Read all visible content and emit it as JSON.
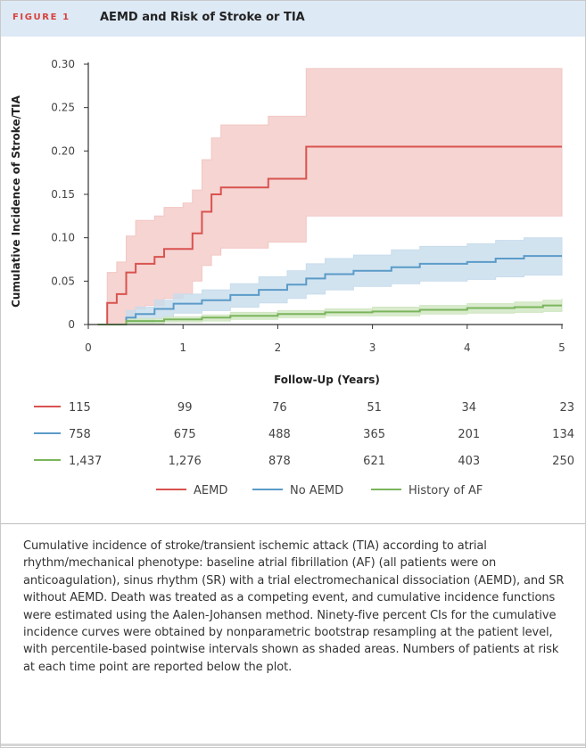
{
  "figure": {
    "label": "FIGURE 1",
    "title": "AEMD and Risk of Stroke or TIA"
  },
  "chart_data": {
    "type": "line",
    "step": true,
    "title": "AEMD and Risk of Stroke or TIA",
    "xlabel": "Follow-Up (Years)",
    "ylabel": "Cumulative Incidence of Stroke/TIA",
    "xlim": [
      0,
      5
    ],
    "ylim": [
      0,
      0.3
    ],
    "xticks": [
      0,
      1,
      2,
      3,
      4,
      5
    ],
    "xtick_labels": [
      "0",
      "1",
      "2",
      "3",
      "4",
      "5"
    ],
    "yticks": [
      0,
      0.05,
      0.1,
      0.15,
      0.2,
      0.25,
      0.3
    ],
    "ytick_labels": [
      "0",
      "0.05",
      "0.10",
      "0.15",
      "0.20",
      "0.25",
      "0.30"
    ],
    "series": [
      {
        "name": "AEMD",
        "color": "#d9534f",
        "band_color": "#f2c6c3",
        "points": [
          [
            0.1,
            0
          ],
          [
            0.2,
            0.025
          ],
          [
            0.3,
            0.035
          ],
          [
            0.4,
            0.06
          ],
          [
            0.5,
            0.07
          ],
          [
            0.6,
            0.07
          ],
          [
            0.7,
            0.078
          ],
          [
            0.8,
            0.087
          ],
          [
            1.0,
            0.087
          ],
          [
            1.1,
            0.105
          ],
          [
            1.2,
            0.13
          ],
          [
            1.3,
            0.15
          ],
          [
            1.4,
            0.158
          ],
          [
            1.9,
            0.168
          ],
          [
            2.3,
            0.205
          ],
          [
            5.0,
            0.205
          ]
        ],
        "lower": [
          [
            0.1,
            0
          ],
          [
            0.3,
            0
          ],
          [
            0.4,
            0.01
          ],
          [
            0.5,
            0.018
          ],
          [
            0.6,
            0.022
          ],
          [
            0.8,
            0.03
          ],
          [
            1.0,
            0.035
          ],
          [
            1.1,
            0.05
          ],
          [
            1.2,
            0.068
          ],
          [
            1.3,
            0.08
          ],
          [
            1.4,
            0.088
          ],
          [
            1.9,
            0.095
          ],
          [
            2.3,
            0.125
          ],
          [
            5.0,
            0.125
          ]
        ],
        "upper": [
          [
            0.1,
            0
          ],
          [
            0.2,
            0.06
          ],
          [
            0.3,
            0.072
          ],
          [
            0.4,
            0.102
          ],
          [
            0.5,
            0.12
          ],
          [
            0.6,
            0.12
          ],
          [
            0.7,
            0.125
          ],
          [
            0.8,
            0.135
          ],
          [
            1.0,
            0.14
          ],
          [
            1.1,
            0.155
          ],
          [
            1.2,
            0.19
          ],
          [
            1.3,
            0.215
          ],
          [
            1.4,
            0.23
          ],
          [
            1.9,
            0.24
          ],
          [
            2.3,
            0.295
          ],
          [
            5.0,
            0.295
          ]
        ]
      },
      {
        "name": "No AEMD",
        "color": "#5b9bc8",
        "band_color": "#c7dcec",
        "points": [
          [
            0.1,
            0
          ],
          [
            0.4,
            0.008
          ],
          [
            0.5,
            0.012
          ],
          [
            0.7,
            0.018
          ],
          [
            0.9,
            0.024
          ],
          [
            1.2,
            0.028
          ],
          [
            1.5,
            0.034
          ],
          [
            1.8,
            0.04
          ],
          [
            2.1,
            0.046
          ],
          [
            2.3,
            0.053
          ],
          [
            2.5,
            0.058
          ],
          [
            2.8,
            0.062
          ],
          [
            3.2,
            0.066
          ],
          [
            3.5,
            0.07
          ],
          [
            4.0,
            0.072
          ],
          [
            4.3,
            0.076
          ],
          [
            4.6,
            0.079
          ],
          [
            5.0,
            0.079
          ]
        ],
        "lower": [
          [
            0.1,
            0
          ],
          [
            0.4,
            0.002
          ],
          [
            0.7,
            0.008
          ],
          [
            0.9,
            0.013
          ],
          [
            1.2,
            0.016
          ],
          [
            1.5,
            0.02
          ],
          [
            1.8,
            0.025
          ],
          [
            2.1,
            0.03
          ],
          [
            2.3,
            0.035
          ],
          [
            2.5,
            0.04
          ],
          [
            2.8,
            0.044
          ],
          [
            3.2,
            0.047
          ],
          [
            3.5,
            0.05
          ],
          [
            4.0,
            0.052
          ],
          [
            4.3,
            0.055
          ],
          [
            4.6,
            0.057
          ],
          [
            5.0,
            0.058
          ]
        ],
        "upper": [
          [
            0.1,
            0
          ],
          [
            0.4,
            0.016
          ],
          [
            0.5,
            0.02
          ],
          [
            0.7,
            0.028
          ],
          [
            0.9,
            0.035
          ],
          [
            1.2,
            0.04
          ],
          [
            1.5,
            0.047
          ],
          [
            1.8,
            0.055
          ],
          [
            2.1,
            0.062
          ],
          [
            2.3,
            0.07
          ],
          [
            2.5,
            0.076
          ],
          [
            2.8,
            0.08
          ],
          [
            3.2,
            0.086
          ],
          [
            3.5,
            0.09
          ],
          [
            4.0,
            0.093
          ],
          [
            4.3,
            0.097
          ],
          [
            4.6,
            0.1
          ],
          [
            5.0,
            0.1
          ]
        ]
      },
      {
        "name": "History of AF",
        "color": "#7ab55c",
        "band_color": "#cfe6c1",
        "points": [
          [
            0.1,
            0
          ],
          [
            0.4,
            0.004
          ],
          [
            0.8,
            0.006
          ],
          [
            1.2,
            0.008
          ],
          [
            1.5,
            0.01
          ],
          [
            2.0,
            0.012
          ],
          [
            2.5,
            0.014
          ],
          [
            3.0,
            0.015
          ],
          [
            3.5,
            0.017
          ],
          [
            4.0,
            0.019
          ],
          [
            4.5,
            0.02
          ],
          [
            4.8,
            0.022
          ],
          [
            5.0,
            0.022
          ]
        ],
        "lower": [
          [
            0.1,
            0
          ],
          [
            0.4,
            0.001
          ],
          [
            0.8,
            0.003
          ],
          [
            1.2,
            0.004
          ],
          [
            1.5,
            0.006
          ],
          [
            2.0,
            0.008
          ],
          [
            2.5,
            0.01
          ],
          [
            3.0,
            0.01
          ],
          [
            3.5,
            0.012
          ],
          [
            4.0,
            0.013
          ],
          [
            4.5,
            0.014
          ],
          [
            4.8,
            0.015
          ],
          [
            5.0,
            0.015
          ]
        ],
        "upper": [
          [
            0.1,
            0
          ],
          [
            0.4,
            0.007
          ],
          [
            0.8,
            0.009
          ],
          [
            1.2,
            0.011
          ],
          [
            1.5,
            0.014
          ],
          [
            2.0,
            0.016
          ],
          [
            2.5,
            0.018
          ],
          [
            3.0,
            0.02
          ],
          [
            3.5,
            0.022
          ],
          [
            4.0,
            0.024
          ],
          [
            4.5,
            0.026
          ],
          [
            4.8,
            0.028
          ],
          [
            5.0,
            0.03
          ]
        ]
      }
    ],
    "at_risk": [
      {
        "name": "AEMD",
        "values": [
          "115",
          "99",
          "76",
          "51",
          "34",
          "23"
        ]
      },
      {
        "name": "No AEMD",
        "values": [
          "758",
          "675",
          "488",
          "365",
          "201",
          "134"
        ]
      },
      {
        "name": "History of AF",
        "values": [
          "1,437",
          "1,276",
          "878",
          "621",
          "403",
          "250"
        ]
      }
    ],
    "legend": [
      "AEMD",
      "No AEMD",
      "History of AF"
    ]
  },
  "caption": "Cumulative incidence of stroke/transient ischemic attack (TIA) according to atrial rhythm/mechanical phenotype: baseline atrial fibrillation (AF) (all patients were on anticoagulation), sinus rhythm (SR) with a trial electromechanical dissociation (AEMD), and SR without AEMD. Death was treated as a competing event, and cumulative incidence functions were estimated using the Aalen-Johansen method. Ninety-five percent CIs for the cumulative incidence curves were obtained by nonparametric bootstrap resampling at the patient level, with percentile-based pointwise intervals shown as shaded areas. Numbers of patients at risk at each time point are reported below the plot."
}
